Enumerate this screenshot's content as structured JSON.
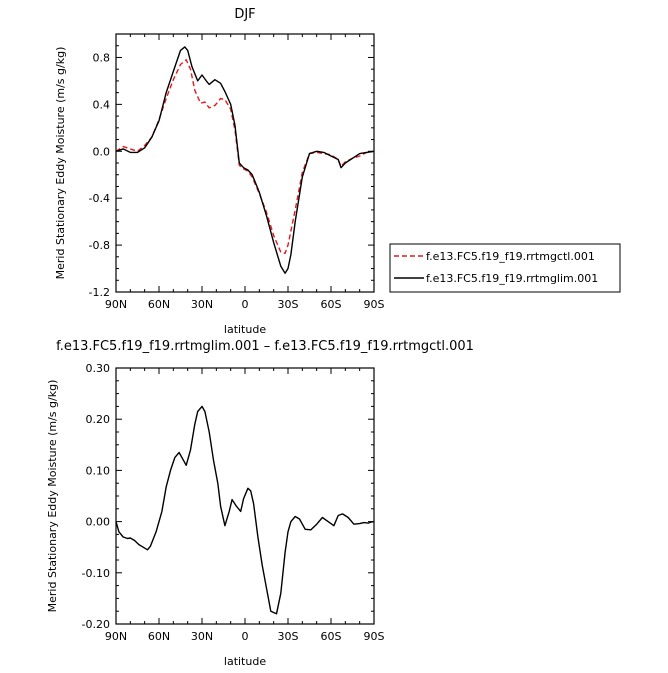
{
  "chart_data": [
    {
      "type": "line",
      "title": "DJF",
      "xlabel": "latitude",
      "ylabel": "Merid Stationary Eddy Moisture (m/s g/kg)",
      "xlim": [
        90,
        -90
      ],
      "ylim": [
        -1.2,
        1.0
      ],
      "x_ticks": [
        90,
        60,
        30,
        0,
        -30,
        -60,
        -90
      ],
      "x_tick_labels": [
        "90N",
        "60N",
        "30N",
        "0",
        "30S",
        "60S",
        "90S"
      ],
      "y_ticks": [
        0.8,
        0.4,
        0.0,
        -0.4,
        -0.8,
        -1.2
      ],
      "y_tick_labels": [
        "0.8",
        "0.4",
        "0.0",
        "-0.4",
        "-0.8",
        "-1.2"
      ],
      "legend_position": "outside-right",
      "series": [
        {
          "name": "f.e13.FC5.f19_f19.rrtmgctl.001",
          "color": "#e41a1c",
          "dash": "dashed",
          "x": [
            90,
            85,
            80,
            75,
            70,
            65,
            60,
            55,
            50,
            45,
            41,
            38,
            35,
            31,
            28,
            25,
            21,
            17,
            14,
            10,
            7,
            4,
            1,
            -2,
            -5,
            -10,
            -15,
            -20,
            -25,
            -28,
            -30,
            -35,
            -40,
            -45,
            -50,
            -55,
            -60,
            -65,
            -67,
            -70,
            -75,
            -80,
            -85,
            -90
          ],
          "y": [
            0.0,
            0.04,
            0.02,
            0.0,
            0.05,
            0.12,
            0.27,
            0.45,
            0.61,
            0.74,
            0.78,
            0.7,
            0.52,
            0.41,
            0.42,
            0.37,
            0.39,
            0.45,
            0.44,
            0.36,
            0.18,
            -0.12,
            -0.15,
            -0.17,
            -0.22,
            -0.36,
            -0.52,
            -0.72,
            -0.86,
            -0.87,
            -0.8,
            -0.5,
            -0.18,
            -0.02,
            -0.01,
            -0.02,
            -0.03,
            -0.07,
            -0.13,
            -0.09,
            -0.06,
            -0.04,
            -0.01,
            0.0
          ]
        },
        {
          "name": "f.e13.FC5.f19_f19.rrtmglim.001",
          "color": "#000000",
          "dash": "solid",
          "x": [
            90,
            85,
            80,
            75,
            70,
            65,
            60,
            55,
            50,
            45,
            42,
            40,
            37,
            33,
            30,
            27,
            25,
            21,
            17,
            14,
            10,
            7,
            4,
            1,
            -2,
            -5,
            -10,
            -15,
            -20,
            -25,
            -28,
            -30,
            -32,
            -35,
            -40,
            -45,
            -50,
            -55,
            -60,
            -65,
            -67,
            -70,
            -75,
            -80,
            -85,
            -90
          ],
          "y": [
            0.0,
            0.02,
            -0.01,
            -0.01,
            0.03,
            0.12,
            0.26,
            0.5,
            0.68,
            0.86,
            0.89,
            0.86,
            0.72,
            0.6,
            0.65,
            0.6,
            0.57,
            0.61,
            0.58,
            0.51,
            0.4,
            0.22,
            -0.1,
            -0.14,
            -0.16,
            -0.2,
            -0.35,
            -0.55,
            -0.78,
            -0.98,
            -1.04,
            -1.0,
            -0.88,
            -0.6,
            -0.22,
            -0.02,
            0.0,
            -0.01,
            -0.04,
            -0.07,
            -0.14,
            -0.1,
            -0.06,
            -0.02,
            -0.01,
            0.0
          ]
        }
      ]
    },
    {
      "type": "line",
      "title": "f.e13.FC5.f19_f19.rrtmglim.001 – f.e13.FC5.f19_f19.rrtmgctl.001",
      "xlabel": "latitude",
      "ylabel": "Merid Stationary Eddy Moisture (m/s g/kg)",
      "xlim": [
        90,
        -90
      ],
      "ylim": [
        -0.2,
        0.3
      ],
      "x_ticks": [
        90,
        60,
        30,
        0,
        -30,
        -60,
        -90
      ],
      "x_tick_labels": [
        "90N",
        "60N",
        "30N",
        "0",
        "30S",
        "60S",
        "90S"
      ],
      "y_ticks": [
        0.3,
        0.2,
        0.1,
        0.0,
        -0.1,
        -0.2
      ],
      "y_tick_labels": [
        "0.30",
        "0.20",
        "0.10",
        "0.00",
        "-0.10",
        "-0.20"
      ],
      "series": [
        {
          "name": "",
          "color": "#000000",
          "dash": "solid",
          "x": [
            90,
            88,
            85,
            82,
            80,
            77,
            74,
            71,
            68,
            66,
            62,
            58,
            55,
            52,
            49,
            46,
            43,
            41,
            38,
            35,
            33,
            30,
            28,
            25,
            22,
            19,
            17,
            14,
            11,
            9,
            6,
            3,
            1,
            -2,
            -4,
            -6,
            -9,
            -12,
            -15,
            -18,
            -22,
            -25,
            -28,
            -30,
            -32,
            -35,
            -38,
            -42,
            -46,
            -50,
            -54,
            -58,
            -62,
            -65,
            -68,
            -72,
            -76,
            -80,
            -83,
            -86,
            -88,
            -90
          ],
          "y": [
            0.0,
            -0.02,
            -0.03,
            -0.033,
            -0.032,
            -0.037,
            -0.045,
            -0.05,
            -0.055,
            -0.048,
            -0.02,
            0.02,
            0.068,
            0.1,
            0.125,
            0.135,
            0.12,
            0.11,
            0.14,
            0.19,
            0.215,
            0.225,
            0.215,
            0.175,
            0.12,
            0.075,
            0.03,
            -0.008,
            0.02,
            0.043,
            0.03,
            0.02,
            0.045,
            0.065,
            0.06,
            0.035,
            -0.03,
            -0.085,
            -0.13,
            -0.175,
            -0.18,
            -0.14,
            -0.06,
            -0.02,
            0.0,
            0.01,
            0.005,
            -0.015,
            -0.016,
            -0.005,
            0.008,
            0.0,
            -0.008,
            0.012,
            0.015,
            0.008,
            -0.005,
            -0.004,
            -0.002,
            -0.003,
            -0.001,
            0.0
          ]
        }
      ]
    }
  ]
}
